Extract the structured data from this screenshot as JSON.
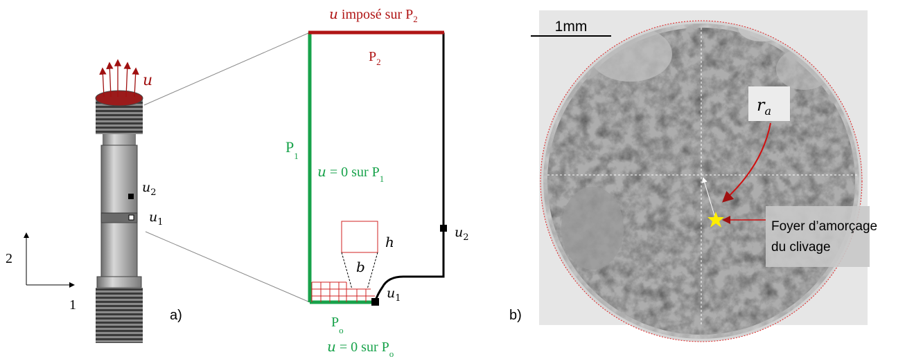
{
  "panel_a": {
    "load_label": "u",
    "gauge_upper": {
      "base": "u",
      "sub": "2"
    },
    "gauge_lower": {
      "base": "u",
      "sub": "1"
    },
    "axis_vertical": "2",
    "axis_horizontal": "1",
    "panel_label": "a)"
  },
  "mesh_model": {
    "top_bc": {
      "symbol": "u",
      "text": " imposé sur ",
      "base": "P",
      "sub": "2"
    },
    "top_edge": {
      "base": "P",
      "sub": "2"
    },
    "left_edge": {
      "base": "P",
      "sub": "1"
    },
    "left_bc": {
      "symbol": "u",
      "text": " = 0 sur ",
      "base": "P",
      "sub": "1"
    },
    "element_height": "h",
    "element_width": "b",
    "gauge_upper": {
      "base": "u",
      "sub": "2"
    },
    "gauge_lower": {
      "base": "u",
      "sub": "1"
    },
    "bottom_edge": {
      "base": "P",
      "sub": "o"
    },
    "bottom_bc": {
      "symbol": "u",
      "text": " = 0 sur ",
      "base": "P",
      "sub": "o"
    }
  },
  "panel_b": {
    "scale_bar": "1mm",
    "radius_label": {
      "base": "r",
      "sub": "a"
    },
    "initiation_label": [
      "Foyer d’amorçage",
      "du clivage"
    ],
    "panel_label": "b)"
  }
}
